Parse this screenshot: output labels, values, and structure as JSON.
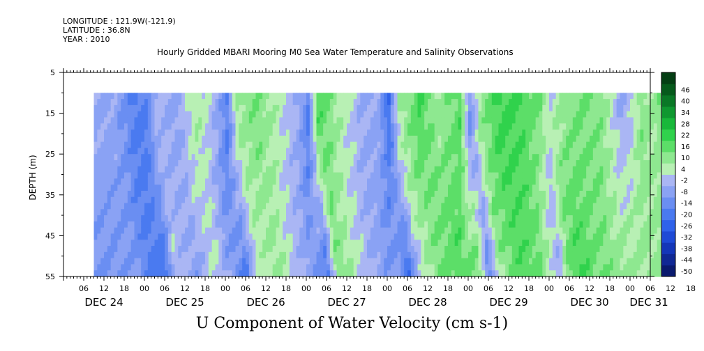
{
  "header": {
    "longitude": "LONGITUDE : 121.9W(-121.9)",
    "latitude": "LATITUDE : 36.8N",
    "year": "YEAR : 2010"
  },
  "chart_data": {
    "type": "heatmap",
    "title": "Hourly Gridded MBARI Mooring M0 Sea Water Temperature and Salinity Observations",
    "xlabel": "U Component of Water Velocity (cm s-1)",
    "ylabel": "DEPTH (m)",
    "y_range": [
      5,
      55
    ],
    "y_inverted": true,
    "y_ticks": [
      5,
      15,
      25,
      35,
      45,
      55
    ],
    "data_depth_range": [
      10,
      55
    ],
    "x_range_hours": [
      "2010-12-24 00:00",
      "2010-12-31 06:00"
    ],
    "data_start": "2010-12-24 09:00",
    "data_end": "2010-12-31 03:00",
    "x_hour_ticks": [
      "06",
      "12",
      "18",
      "00",
      "06",
      "12",
      "18",
      "00",
      "06",
      "12",
      "18",
      "00",
      "06",
      "12",
      "18",
      "00",
      "06",
      "12",
      "18",
      "00",
      "06",
      "12",
      "18",
      "00",
      "06",
      "12",
      "18",
      "00",
      "06",
      "12",
      "18",
      "00"
    ],
    "x_day_labels": [
      "DEC 24",
      "DEC 25",
      "DEC 26",
      "DEC 27",
      "DEC 28",
      "DEC 29",
      "DEC 30",
      "DEC 31"
    ],
    "colorbar": {
      "levels": [
        -50,
        -44,
        -38,
        -32,
        -26,
        -20,
        -14,
        -8,
        -2,
        4,
        10,
        16,
        22,
        28,
        34,
        40,
        46
      ],
      "colors": [
        "#0a1a6e",
        "#102894",
        "#1436b8",
        "#1e4ad6",
        "#2f62ea",
        "#4a7af0",
        "#6a8ef2",
        "#8aa2f4",
        "#aab6f4",
        "#b8f0b4",
        "#8ee890",
        "#5cde68",
        "#30d24c",
        "#18b83a",
        "#0f9830",
        "#0a7826",
        "#065a1c",
        "#043e14"
      ]
    },
    "profile_hours": [
      9,
      15,
      21,
      24,
      27,
      33,
      39,
      45,
      48,
      51,
      57,
      63,
      69,
      72,
      75,
      81,
      87,
      93,
      96,
      99,
      105,
      111,
      117,
      120,
      123,
      129,
      135,
      141,
      144,
      147,
      153,
      159,
      165,
      168,
      171,
      174,
      177
    ],
    "profile_surface_u": [
      -8,
      -10,
      -22,
      -20,
      -6,
      -10,
      4,
      -8,
      -20,
      6,
      10,
      2,
      -8,
      -20,
      16,
      4,
      -6,
      -10,
      -24,
      4,
      16,
      4,
      14,
      -14,
      6,
      18,
      16,
      10,
      -2,
      4,
      10,
      8,
      -10,
      -4,
      8,
      4,
      10
    ],
    "profile_bottom_u": [
      -14,
      -12,
      -24,
      -24,
      -2,
      -12,
      0,
      -16,
      -22,
      -2,
      6,
      -4,
      -14,
      -24,
      10,
      0,
      -10,
      -14,
      -26,
      -6,
      10,
      14,
      10,
      -20,
      4,
      14,
      12,
      -8,
      12,
      16,
      10,
      8,
      4,
      6,
      6,
      4,
      8
    ]
  }
}
